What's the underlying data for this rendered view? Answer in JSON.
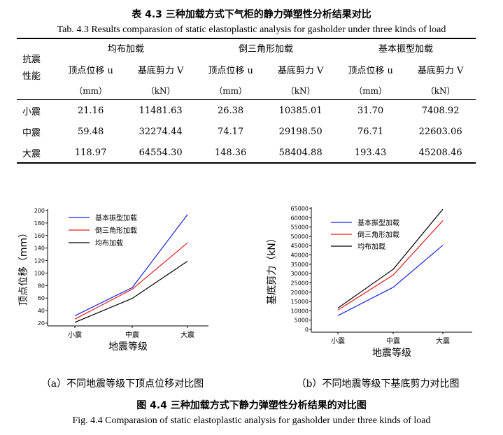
{
  "table": {
    "title_cn": "表 4.3  三种加载方式下气柜的静力弹塑性分析结果对比",
    "title_en": "Tab. 4.3 Results comparasion of static elastoplastic analysis for gasholder under three kinds of load",
    "row_header": "抗震性能",
    "groups": [
      "均布加载",
      "倒三角形加载",
      "基本振型加载"
    ],
    "col_headers": [
      "顶点位移 u",
      "基底剪力 V",
      "顶点位移 u",
      "基底剪力 V",
      "顶点位移 u",
      "基底剪力 V"
    ],
    "units": [
      "（mm）",
      "（kN）",
      "（mm）",
      "（kN）",
      "（mm）",
      "（kN）"
    ],
    "rows": [
      {
        "label": "小震",
        "values": [
          "21.16",
          "11481.63",
          "26.38",
          "10385.01",
          "31.70",
          "7408.92"
        ]
      },
      {
        "label": "中震",
        "values": [
          "59.48",
          "32274.44",
          "74.17",
          "29198.50",
          "76.71",
          "22603.06"
        ]
      },
      {
        "label": "大震",
        "values": [
          "118.97",
          "64554.30",
          "148.36",
          "58404.88",
          "193.43",
          "45208.46"
        ]
      }
    ]
  },
  "colors": {
    "blue": "#1a22e0",
    "red": "#e81a1a",
    "black": "#000000"
  },
  "chart_data": [
    {
      "type": "line",
      "categories": [
        "小震",
        "中震",
        "大震"
      ],
      "series": [
        {
          "name": "基本振型加载",
          "color": "#1a22e0",
          "values": [
            31.7,
            76.71,
            193.43
          ]
        },
        {
          "name": "倒三角形加载",
          "color": "#e81a1a",
          "values": [
            26.38,
            74.17,
            148.36
          ]
        },
        {
          "name": "均布加载",
          "color": "#000000",
          "values": [
            21.16,
            59.48,
            118.97
          ]
        }
      ],
      "xlabel": "地震等级",
      "ylabel": "顶点位移（mm）",
      "ylim": [
        20,
        200
      ],
      "yticks": [
        "200",
        "180",
        "160",
        "140",
        "120",
        "100",
        "80",
        "60",
        "40",
        "20"
      ],
      "legend": "top-left",
      "caption": "（a）不同地震等级下顶点位移对比图"
    },
    {
      "type": "line",
      "categories": [
        "小震",
        "中震",
        "大震"
      ],
      "series": [
        {
          "name": "基本振型加载",
          "color": "#1a22e0",
          "values": [
            7408.92,
            22603.06,
            45208.46
          ]
        },
        {
          "name": "倒三角形加载",
          "color": "#e81a1a",
          "values": [
            10385.01,
            29198.5,
            58404.88
          ]
        },
        {
          "name": "均布加载",
          "color": "#000000",
          "values": [
            11481.63,
            32274.44,
            64554.3
          ]
        }
      ],
      "xlabel": "地震等级",
      "ylabel": "基底剪力（kN）",
      "ylim": [
        0,
        65000
      ],
      "yticks": [
        "65000",
        "60000",
        "55000",
        "50000",
        "45000",
        "40000",
        "35000",
        "30000",
        "25000",
        "20000",
        "15000",
        "10000",
        "5000",
        "0"
      ],
      "legend": "top-left",
      "caption": "（b）不同地震等级下基底剪力对比图"
    }
  ],
  "figure": {
    "title_cn": "图 4.4  三种加载方式下静力弹塑性分析结果的对比图",
    "title_en": "Fig. 4.4 Comparasion of static elastoplastic analysis for gasholder under three kinds of load"
  }
}
